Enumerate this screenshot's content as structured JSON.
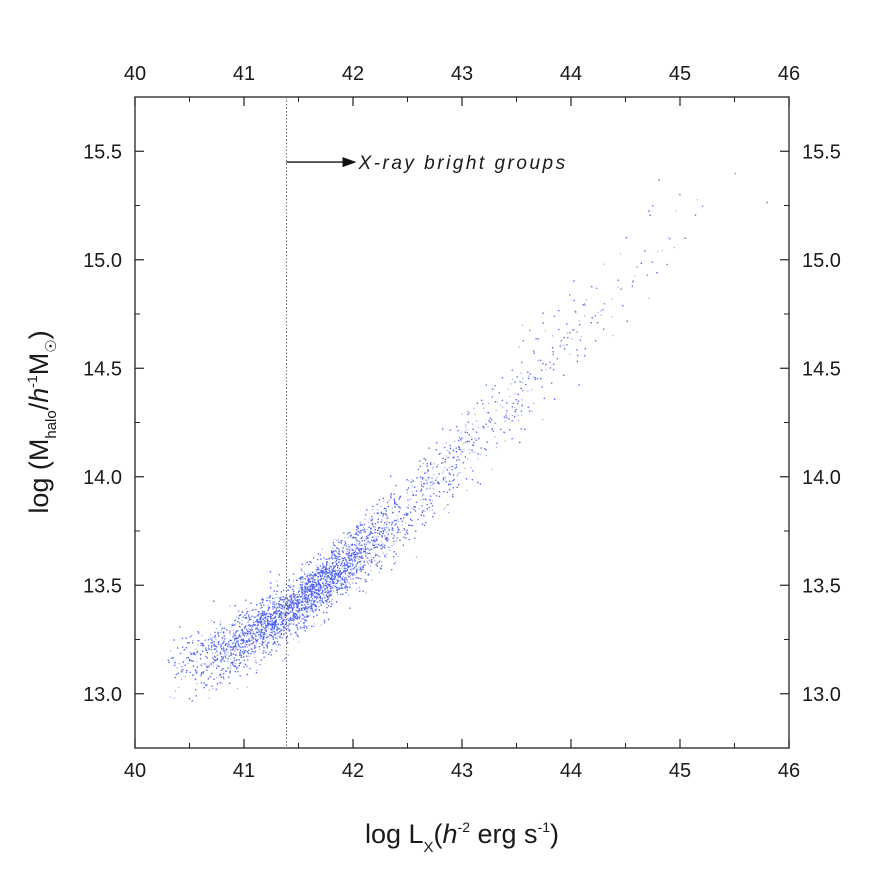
{
  "chart_data": {
    "type": "scatter",
    "title": "",
    "xlabel": {
      "prefix": "log L",
      "sub": "X",
      "mid": "(",
      "italic": "h",
      "sup": "-2",
      "rest": " erg s",
      "sup2": "-1",
      "end": ")"
    },
    "ylabel": {
      "prefix": "log (M",
      "sub": "halo",
      "mid": "/",
      "italic": "h",
      "sup": "-1",
      "rest": "M",
      "sub2": "☉",
      "end": ")"
    },
    "xlim": [
      40,
      46
    ],
    "ylim": [
      12.75,
      15.75
    ],
    "x_ticks": [
      "40",
      "41",
      "42",
      "43",
      "44",
      "45",
      "46"
    ],
    "y_ticks": [
      "13.0",
      "13.5",
      "14.0",
      "14.5",
      "15.0",
      "15.5"
    ],
    "grid": false,
    "marker_color": "#4a5ef0",
    "threshold_x": 41.39,
    "annotation": {
      "text": "X-ray bright groups",
      "x": 41.39,
      "y": 15.45
    },
    "points_model": {
      "description_ridge": [
        [
          40.6,
          13.15
        ],
        [
          41.0,
          13.25
        ],
        [
          41.5,
          13.42
        ],
        [
          42.0,
          13.62
        ],
        [
          42.5,
          13.85
        ],
        [
          43.0,
          14.1
        ],
        [
          43.5,
          14.38
        ],
        [
          44.0,
          14.65
        ],
        [
          44.5,
          14.92
        ],
        [
          45.0,
          15.15
        ],
        [
          45.6,
          15.45
        ]
      ],
      "sample_points": [
        [
          40.75,
          13.18
        ],
        [
          40.95,
          13.22
        ],
        [
          41.1,
          13.3
        ],
        [
          41.25,
          13.35
        ],
        [
          41.4,
          13.4
        ],
        [
          41.55,
          13.45
        ],
        [
          41.7,
          13.5
        ],
        [
          41.85,
          13.57
        ],
        [
          42.0,
          13.63
        ],
        [
          42.15,
          13.7
        ],
        [
          42.3,
          13.77
        ],
        [
          42.5,
          13.86
        ],
        [
          42.7,
          13.95
        ],
        [
          42.9,
          14.05
        ],
        [
          43.1,
          14.15
        ],
        [
          43.3,
          14.25
        ],
        [
          43.55,
          14.4
        ],
        [
          43.8,
          14.53
        ],
        [
          44.05,
          14.67
        ],
        [
          44.3,
          14.8
        ],
        [
          44.6,
          14.97
        ],
        [
          44.9,
          15.1
        ],
        [
          45.2,
          15.25
        ],
        [
          45.5,
          15.4
        ]
      ],
      "count": 9000
    }
  }
}
